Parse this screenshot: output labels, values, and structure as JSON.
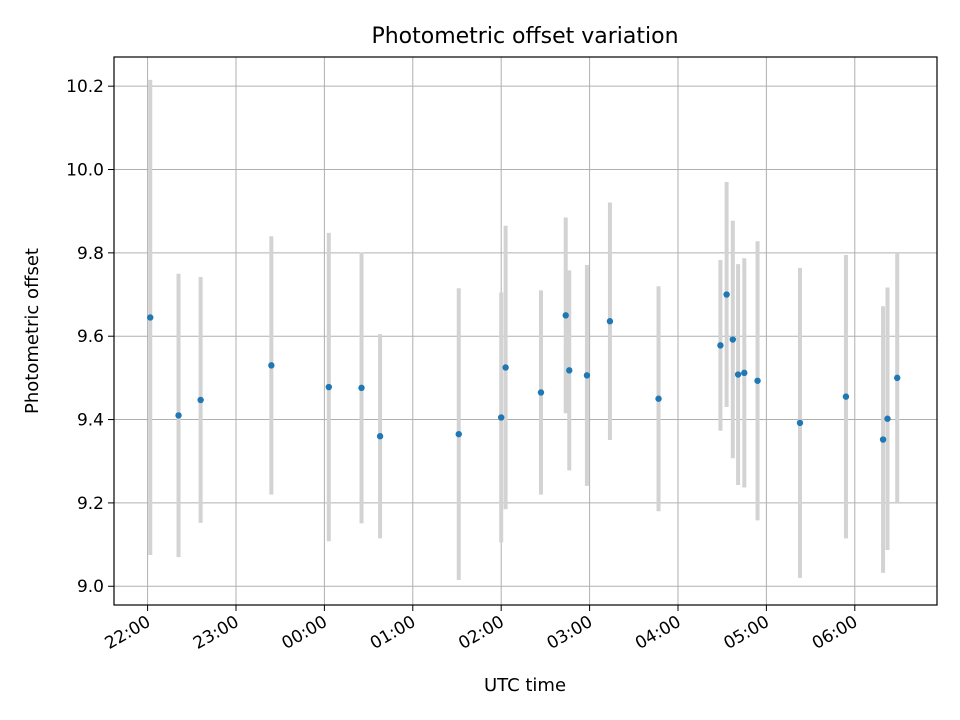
{
  "chart_data": {
    "type": "scatter",
    "title": "Photometric offset variation",
    "xlabel": "UTC time",
    "ylabel": "Photometric offset",
    "x_axis_kind": "time of day (hours past 22:00 on first night)",
    "xlim": [
      -0.38,
      8.93
    ],
    "ylim": [
      8.955,
      10.27
    ],
    "grid": true,
    "legend": "none",
    "colors": {
      "points": "#1f77b4",
      "error_bars": "#d3d3d3",
      "grid": "#b0b0b0"
    },
    "x_ticks": [
      {
        "value": 0,
        "label": "22:00"
      },
      {
        "value": 1,
        "label": "23:00"
      },
      {
        "value": 2,
        "label": "00:00"
      },
      {
        "value": 3,
        "label": "01:00"
      },
      {
        "value": 4,
        "label": "02:00"
      },
      {
        "value": 5,
        "label": "03:00"
      },
      {
        "value": 6,
        "label": "04:00"
      },
      {
        "value": 7,
        "label": "05:00"
      },
      {
        "value": 8,
        "label": "06:00"
      }
    ],
    "y_ticks": [
      {
        "value": 9.0,
        "label": "9.0"
      },
      {
        "value": 9.2,
        "label": "9.2"
      },
      {
        "value": 9.4,
        "label": "9.4"
      },
      {
        "value": 9.6,
        "label": "9.6"
      },
      {
        "value": 9.8,
        "label": "9.8"
      },
      {
        "value": 10.0,
        "label": "10.0"
      },
      {
        "value": 10.2,
        "label": "10.2"
      }
    ],
    "series": [
      {
        "points": [
          {
            "x": 0.03,
            "y": 9.645,
            "err": 0.57
          },
          {
            "x": 0.35,
            "y": 9.41,
            "err": 0.34
          },
          {
            "x": 0.6,
            "y": 9.447,
            "err": 0.295
          },
          {
            "x": 1.4,
            "y": 9.53,
            "err": 0.31
          },
          {
            "x": 2.05,
            "y": 9.478,
            "err": 0.37
          },
          {
            "x": 2.42,
            "y": 9.476,
            "err": 0.325
          },
          {
            "x": 2.63,
            "y": 9.36,
            "err": 0.245
          },
          {
            "x": 3.52,
            "y": 9.365,
            "err": 0.35
          },
          {
            "x": 4.0,
            "y": 9.405,
            "err": 0.3
          },
          {
            "x": 4.05,
            "y": 9.525,
            "err": 0.34
          },
          {
            "x": 4.45,
            "y": 9.465,
            "err": 0.245
          },
          {
            "x": 4.73,
            "y": 9.65,
            "err": 0.235
          },
          {
            "x": 4.77,
            "y": 9.518,
            "err": 0.24
          },
          {
            "x": 4.97,
            "y": 9.506,
            "err": 0.265
          },
          {
            "x": 5.23,
            "y": 9.636,
            "err": 0.285
          },
          {
            "x": 5.78,
            "y": 9.45,
            "err": 0.27
          },
          {
            "x": 6.48,
            "y": 9.578,
            "err": 0.205
          },
          {
            "x": 6.55,
            "y": 9.7,
            "err": 0.27
          },
          {
            "x": 6.62,
            "y": 9.592,
            "err": 0.285
          },
          {
            "x": 6.68,
            "y": 9.508,
            "err": 0.265
          },
          {
            "x": 6.75,
            "y": 9.512,
            "err": 0.275
          },
          {
            "x": 6.9,
            "y": 9.493,
            "err": 0.335
          },
          {
            "x": 7.38,
            "y": 9.392,
            "err": 0.372
          },
          {
            "x": 7.9,
            "y": 9.455,
            "err": 0.34
          },
          {
            "x": 8.32,
            "y": 9.352,
            "err": 0.32
          },
          {
            "x": 8.37,
            "y": 9.402,
            "err": 0.315
          },
          {
            "x": 8.48,
            "y": 9.5,
            "err": 0.3
          }
        ]
      }
    ]
  }
}
